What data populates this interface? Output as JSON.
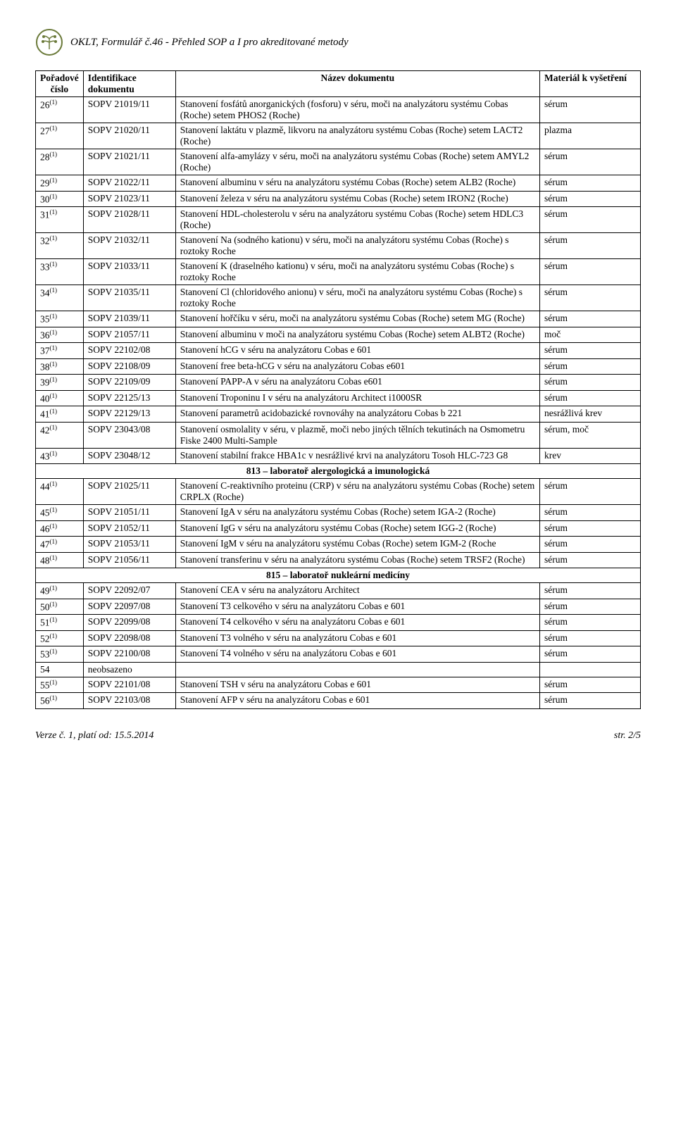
{
  "header": {
    "title": "OKLT, Formulář č.46 - Přehled SOP a I pro akreditované metody"
  },
  "columns": {
    "c1a": "Pořadové",
    "c1b": "číslo",
    "c2a": "Identifikace",
    "c2b": "dokumentu",
    "c3": "Název dokumentu",
    "c4": "Materiál k vyšetření"
  },
  "rows": [
    {
      "n": "26",
      "s": "(1)",
      "id": "SOPV 21019/11",
      "name": "Stanovení fosfátů anorganických (fosforu) v séru, moči na analyzátoru systému Cobas (Roche) setem PHOS2 (Roche)",
      "mat": "sérum"
    },
    {
      "n": "27",
      "s": "(1)",
      "id": "SOPV 21020/11",
      "name": "Stanovení laktátu v plazmě, likvoru na analyzátoru systému Cobas (Roche) setem LACT2 (Roche)",
      "mat": "plazma"
    },
    {
      "n": "28",
      "s": "(1)",
      "id": "SOPV 21021/11",
      "name": "Stanovení alfa-amylázy v séru, moči na analyzátoru systému Cobas (Roche) setem AMYL2 (Roche)",
      "mat": "sérum"
    },
    {
      "n": "29",
      "s": "(1)",
      "id": "SOPV 21022/11",
      "name": "Stanovení albuminu v séru na analyzátoru systému Cobas (Roche) setem ALB2 (Roche)",
      "mat": "sérum"
    },
    {
      "n": "30",
      "s": "(1)",
      "id": "SOPV 21023/11",
      "name": "Stanovení železa v séru na analyzátoru systému Cobas (Roche) setem IRON2 (Roche)",
      "mat": "sérum"
    },
    {
      "n": "31",
      "s": "(1)",
      "id": "SOPV 21028/11",
      "name": "Stanovení HDL-cholesterolu v séru na analyzátoru systému Cobas (Roche) setem HDLC3 (Roche)",
      "mat": "sérum"
    },
    {
      "n": "32",
      "s": "(1)",
      "id": "SOPV 21032/11",
      "name": "Stanovení Na (sodného kationu) v séru, moči na analyzátoru systému Cobas (Roche) s roztoky Roche",
      "mat": "sérum"
    },
    {
      "n": "33",
      "s": "(1)",
      "id": "SOPV 21033/11",
      "name": "Stanovení K (draselného kationu) v séru, moči na analyzátoru systému Cobas (Roche) s roztoky Roche",
      "mat": "sérum"
    },
    {
      "n": "34",
      "s": "(1)",
      "id": "SOPV 21035/11",
      "name": "Stanovení Cl (chloridového anionu) v séru, moči na analyzátoru systému Cobas (Roche) s roztoky Roche",
      "mat": "sérum"
    },
    {
      "n": "35",
      "s": "(1)",
      "id": "SOPV 21039/11",
      "name": "Stanovení hořčíku v séru, moči na analyzátoru systému Cobas (Roche) setem MG (Roche)",
      "mat": "sérum"
    },
    {
      "n": "36",
      "s": "(1)",
      "id": "SOPV 21057/11",
      "name": "Stanovení albuminu v moči na analyzátoru systému Cobas (Roche) setem ALBT2 (Roche)",
      "mat": "moč"
    },
    {
      "n": "37",
      "s": "(1)",
      "id": "SOPV 22102/08",
      "name": "Stanovení hCG v séru na analyzátoru Cobas e 601",
      "mat": "sérum"
    },
    {
      "n": "38",
      "s": "(1)",
      "id": "SOPV 22108/09",
      "name": "Stanovení free beta-hCG v séru na analyzátoru Cobas e601",
      "mat": "sérum"
    },
    {
      "n": "39",
      "s": "(1)",
      "id": "SOPV 22109/09",
      "name": "Stanovení PAPP-A v séru na analyzátoru Cobas e601",
      "mat": "sérum"
    },
    {
      "n": "40",
      "s": "(1)",
      "id": "SOPV 22125/13",
      "name": "Stanovení Troponinu I v séru na analyzátoru Architect i1000SR",
      "mat": "sérum"
    },
    {
      "n": "41",
      "s": "(1)",
      "id": "SOPV 22129/13",
      "name": "Stanovení parametrů acidobazické rovnováhy na analyzátoru Cobas b 221",
      "mat": "nesrážlivá krev"
    },
    {
      "n": "42",
      "s": "(1)",
      "id": "SOPV 23043/08",
      "name": "Stanovení osmolality v séru, v plazmě, moči nebo jiných tělních tekutinách na Osmometru Fiske 2400 Multi-Sample",
      "mat": "sérum, moč"
    },
    {
      "n": "43",
      "s": "(1)",
      "id": "SOPV 23048/12",
      "name": "Stanovení stabilní frakce HBA1c v nesrážlivé krvi na analyzátoru Tosoh HLC-723 G8",
      "mat": "krev"
    }
  ],
  "section1": "813 – laboratoř alergologická a imunologická",
  "rows2": [
    {
      "n": "44",
      "s": "(1)",
      "id": "SOPV 21025/11",
      "name": "Stanovení C-reaktivního proteinu (CRP) v séru na analyzátoru  systému Cobas (Roche) setem CRPLX (Roche)",
      "mat": "sérum"
    },
    {
      "n": "45",
      "s": "(1)",
      "id": "SOPV 21051/11",
      "name": "Stanovení IgA v séru na analyzátoru systému Cobas (Roche) setem IGA-2 (Roche)",
      "mat": "sérum"
    },
    {
      "n": "46",
      "s": "(1)",
      "id": "SOPV 21052/11",
      "name": "Stanovení IgG v séru na analyzátoru systému Cobas (Roche) setem IGG-2 (Roche)",
      "mat": "sérum"
    },
    {
      "n": "47",
      "s": "(1)",
      "id": "SOPV 21053/11",
      "name": "Stanovení IgM v séru na analyzátoru systému Cobas (Roche) setem IGM-2 (Roche",
      "mat": "sérum"
    },
    {
      "n": "48",
      "s": "(1)",
      "id": "SOPV 21056/11",
      "name": "Stanovení transferinu v séru na analyzátoru systému Cobas (Roche) setem TRSF2 (Roche)",
      "mat": "sérum"
    }
  ],
  "section2": "815 – laboratoř nukleární medicíny",
  "rows3": [
    {
      "n": "49",
      "s": "(1)",
      "id": "SOPV 22092/07",
      "name": "Stanovení CEA v séru na analyzátoru Architect",
      "mat": "sérum"
    },
    {
      "n": "50",
      "s": "(1)",
      "id": "SOPV 22097/08",
      "name": "Stanovení T3 celkového v séru na analyzátoru Cobas e 601",
      "mat": "sérum"
    },
    {
      "n": "51",
      "s": "(1)",
      "id": "SOPV 22099/08",
      "name": "Stanovení T4 celkového v séru na analyzátoru Cobas e 601",
      "mat": "sérum"
    },
    {
      "n": "52",
      "s": "(1)",
      "id": "SOPV 22098/08",
      "name": "Stanovení T3 volného v séru na analyzátoru Cobas e 601",
      "mat": "sérum"
    },
    {
      "n": "53",
      "s": "(1)",
      "id": "SOPV 22100/08",
      "name": "Stanovení T4 volného v séru na analyzátoru Cobas e 601",
      "mat": "sérum"
    },
    {
      "n": "54",
      "s": "",
      "id": "neobsazeno",
      "name": "",
      "mat": ""
    },
    {
      "n": "55",
      "s": "(1)",
      "id": "SOPV 22101/08",
      "name": "Stanovení TSH v séru na analyzátoru Cobas e 601",
      "mat": "sérum"
    },
    {
      "n": "56",
      "s": "(1)",
      "id": "SOPV 22103/08",
      "name": "Stanovení  AFP v séru na analyzátoru Cobas e 601",
      "mat": "sérum"
    }
  ],
  "footer": {
    "left": "Verze č. 1, platí od: 15.5.2014",
    "right": "str. 2/5"
  }
}
